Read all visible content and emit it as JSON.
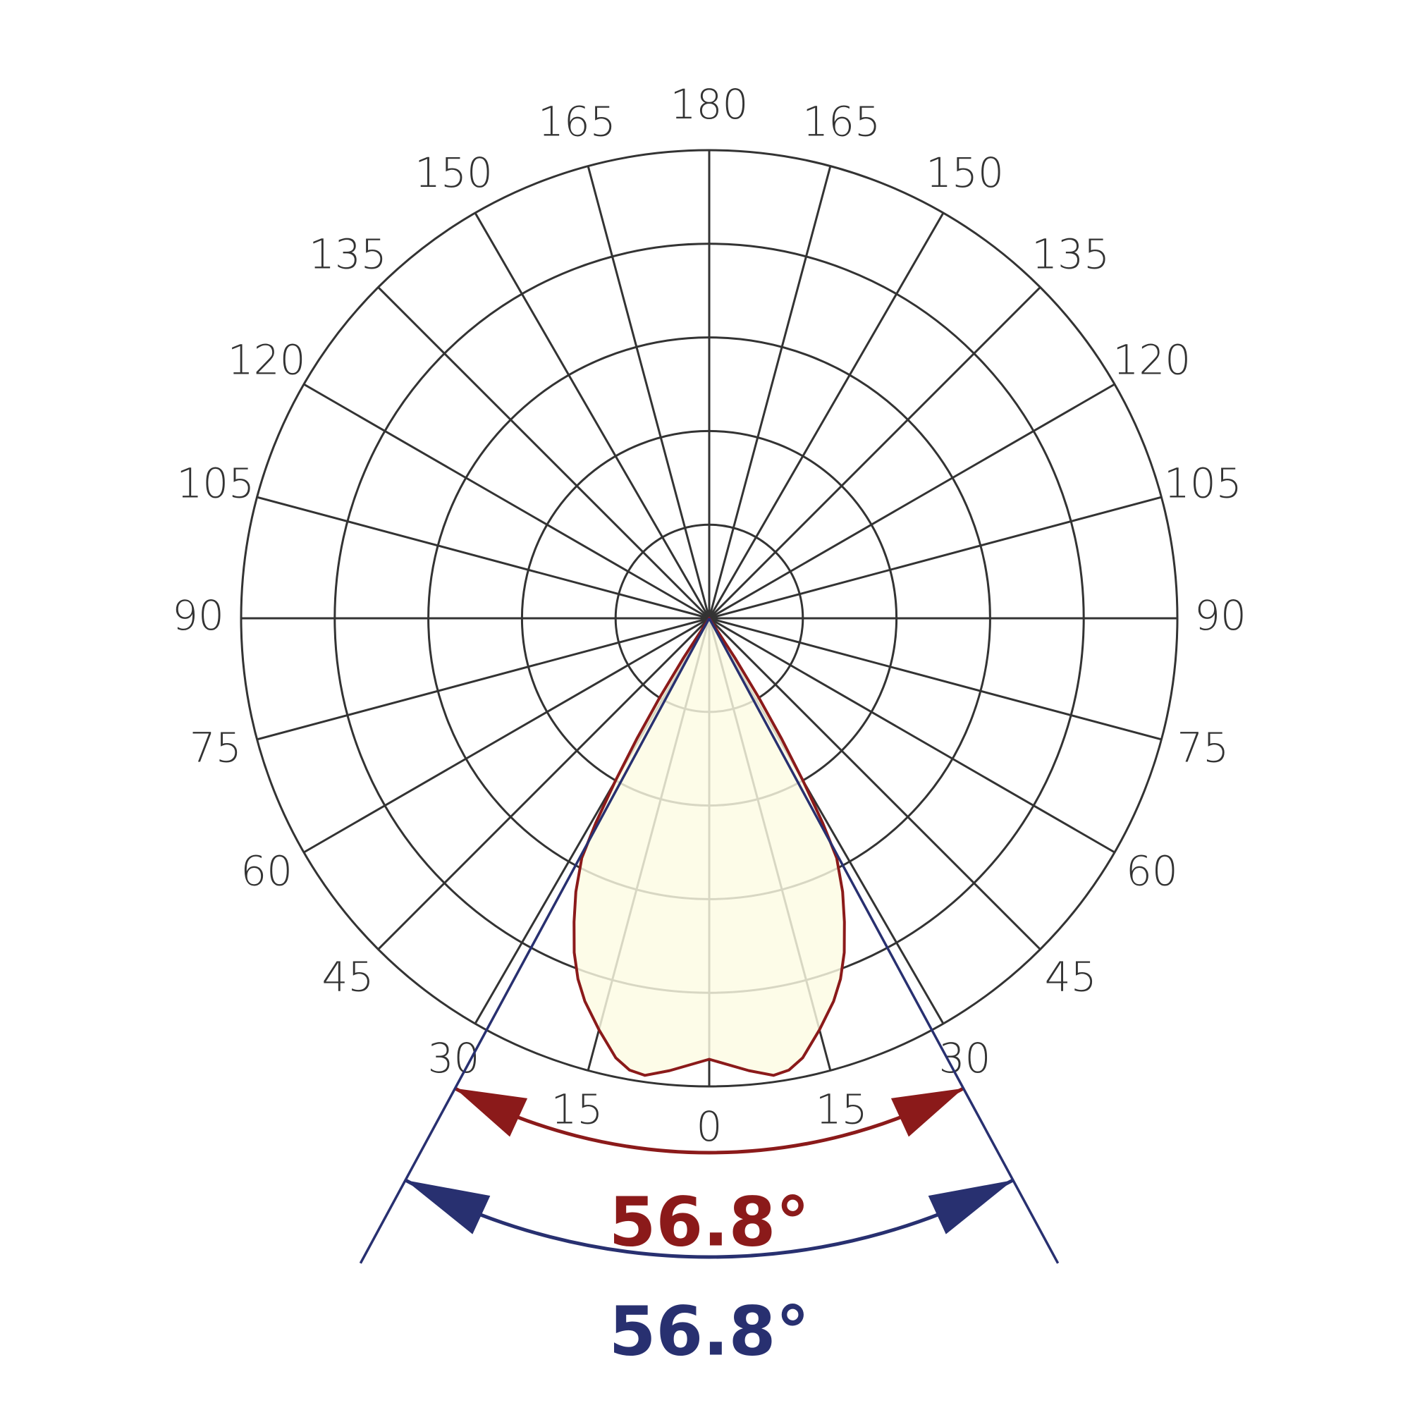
{
  "chart_data": {
    "type": "polar",
    "angle_ticks": [
      0,
      15,
      30,
      45,
      60,
      75,
      90,
      105,
      120,
      135,
      150,
      165,
      180
    ],
    "rlim": [
      0,
      5
    ],
    "rgrid": [
      1,
      2,
      3,
      4,
      5
    ],
    "x": [
      -35,
      -33,
      -32,
      -31,
      -30,
      -29,
      -28,
      -26,
      -24,
      -22,
      -20,
      -18,
      -15,
      -12,
      -10,
      -8,
      -5,
      0,
      5,
      8,
      10,
      12,
      15,
      18,
      20,
      22,
      24,
      26,
      28,
      29,
      30,
      31,
      32,
      33,
      35
    ],
    "series": [
      {
        "color": "#8b1a1a",
        "fill": "#fdfbe3",
        "values": [
          0,
          0.5,
          1.0,
          1.5,
          2.0,
          2.5,
          2.9,
          3.25,
          3.55,
          3.85,
          4.1,
          4.3,
          4.55,
          4.8,
          4.9,
          4.93,
          4.85,
          4.71,
          4.85,
          4.93,
          4.9,
          4.8,
          4.55,
          4.3,
          4.1,
          3.85,
          3.55,
          3.25,
          2.9,
          2.5,
          2.0,
          1.5,
          1.0,
          0.5,
          0
        ]
      }
    ],
    "annotations": [
      {
        "value": 56.8,
        "label": "56.8°",
        "color": "#8b1a1a"
      },
      {
        "value": 56.8,
        "label": "56.8°",
        "color": "#283070"
      }
    ]
  }
}
